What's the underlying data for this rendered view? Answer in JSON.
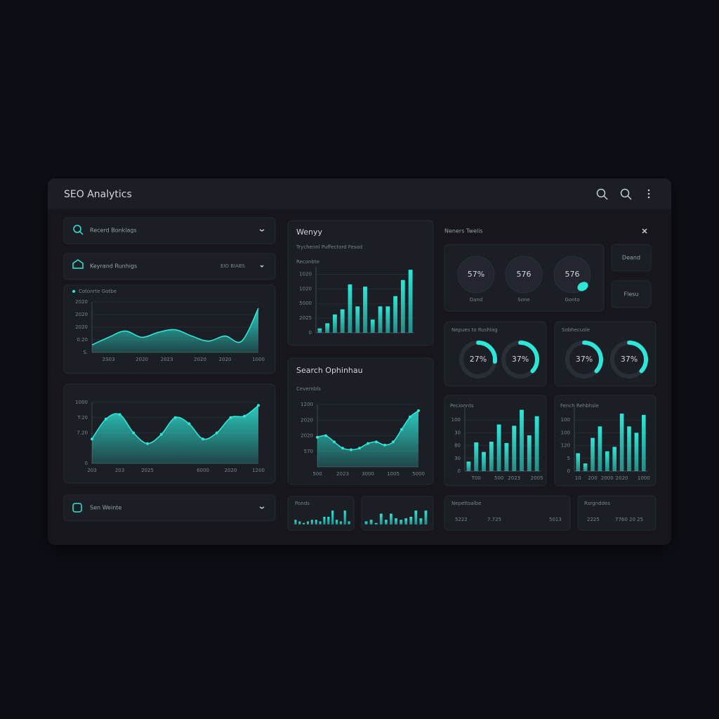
{
  "header": {
    "title": "SEO Analytics"
  },
  "filters": [
    {
      "label": "Recerd Bonklags"
    },
    {
      "label": "Keyrand Runhigs",
      "meta": "EIO BIABS"
    },
    {
      "label": "Sen Weinte"
    }
  ],
  "charts": [
    {
      "type": "area",
      "legend": "Cotonrte Gotbe",
      "color": "#2ee6d6",
      "grid": true,
      "x": [
        0,
        1,
        2,
        3,
        4,
        5,
        6,
        7,
        8,
        9,
        10
      ],
      "values": [
        0.6,
        1.2,
        1.7,
        1.2,
        1.6,
        1.8,
        1.3,
        0.9,
        1.3,
        0.9,
        3.5
      ],
      "xlim": [
        0,
        10
      ],
      "xticks": [
        {
          "value": 1,
          "label": "2S03"
        },
        {
          "value": 3,
          "label": "2020"
        },
        {
          "value": 4.5,
          "label": "2023"
        },
        {
          "value": 6.5,
          "label": "2020"
        },
        {
          "value": 8,
          "label": "2020"
        },
        {
          "value": 10,
          "label": "1000"
        }
      ],
      "ylim": [
        0,
        4
      ],
      "yticks": [
        {
          "value": 0,
          "label": "S."
        },
        {
          "value": 1,
          "label": "0.20"
        },
        {
          "value": 2,
          "label": "2020"
        },
        {
          "value": 3,
          "label": "2020"
        },
        {
          "value": 4,
          "label": "2020"
        }
      ]
    },
    {
      "type": "area",
      "color": "#2ee6d6",
      "grid": true,
      "markers": true,
      "x": [
        0,
        1,
        2,
        3,
        4,
        5,
        6,
        7,
        8,
        9,
        10,
        11,
        12
      ],
      "values": [
        1.6,
        2.9,
        3.2,
        2.0,
        1.3,
        1.9,
        3.0,
        2.6,
        1.6,
        2.0,
        3.0,
        3.1,
        3.8
      ],
      "xlim": [
        0,
        12
      ],
      "xticks": [
        {
          "value": 0,
          "label": "203"
        },
        {
          "value": 2,
          "label": "203"
        },
        {
          "value": 4,
          "label": "2025"
        },
        {
          "value": 8,
          "label": "6000"
        },
        {
          "value": 10,
          "label": "2020"
        },
        {
          "value": 12,
          "label": "1200"
        }
      ],
      "ylim": [
        0,
        4
      ],
      "yticks": [
        0,
        {
          "value": 2,
          "label": "7.20"
        },
        {
          "value": 3,
          "label": "T:20"
        },
        {
          "value": 4,
          "label": "1000"
        }
      ]
    },
    {
      "type": "bar",
      "title": "Wenyy",
      "subtitle": "Trychennl Puffectord Fesod",
      "label": "Reconbte",
      "color": "#2ee6d6",
      "grid": true,
      "values": [
        0.3,
        0.65,
        1.25,
        1.6,
        3.3,
        1.8,
        3.15,
        0.9,
        1.8,
        1.8,
        2.5,
        3.6,
        4.3
      ],
      "ylim": [
        0,
        4.5
      ],
      "yticks": [
        0,
        {
          "value": 1,
          "label": "2025"
        },
        {
          "value": 2,
          "label": "5000"
        },
        {
          "value": 3,
          "label": "1020"
        },
        {
          "value": 4,
          "label": "1020"
        }
      ]
    },
    {
      "type": "area",
      "title": "Search Ophinhau",
      "subtitle": "Cevernbls",
      "color": "#2ee6d6",
      "grid": true,
      "markers": true,
      "x": [
        0,
        1,
        2,
        3,
        4,
        5,
        6,
        7,
        8,
        9,
        10,
        11,
        12
      ],
      "values": [
        1.9,
        2.0,
        1.6,
        1.2,
        1.1,
        1.2,
        1.5,
        1.6,
        1.4,
        1.6,
        2.4,
        3.2,
        3.6
      ],
      "xlim": [
        0,
        12
      ],
      "xticks": [
        {
          "value": 0,
          "label": "500"
        },
        {
          "value": 3,
          "label": "2023"
        },
        {
          "value": 6,
          "label": "3000"
        },
        {
          "value": 9,
          "label": "1005"
        },
        {
          "value": 12,
          "label": "5000"
        }
      ],
      "ylim": [
        0,
        4
      ],
      "yticks": [
        {
          "value": 1,
          "label": "570"
        },
        {
          "value": 2,
          "label": "2020"
        },
        {
          "value": 3,
          "label": "2020"
        },
        {
          "value": 4,
          "label": "1200"
        }
      ]
    },
    {
      "type": "bar",
      "title": "Ponds",
      "color": "#2ee6d6",
      "values": [
        3,
        2,
        1,
        2,
        3,
        3,
        2,
        5,
        5,
        9,
        3,
        2,
        9,
        2
      ]
    },
    {
      "type": "bar",
      "color": "#2ee6d6",
      "values": [
        2,
        3,
        1,
        7,
        3,
        7,
        4,
        3,
        4,
        5,
        9,
        4,
        9
      ]
    },
    {
      "type": "donut",
      "title": "Nepues to Rushlag",
      "color": "#2ee6d6",
      "values": [
        27,
        37
      ],
      "value_labels": [
        "27%",
        "37%"
      ]
    },
    {
      "type": "donut",
      "title": "Sobhecusle",
      "color": "#2ee6d6",
      "values": [
        37,
        37
      ],
      "value_labels": [
        "37%",
        "37%"
      ]
    },
    {
      "type": "bar",
      "title": "Pecionnts",
      "color": "#2ee6d6",
      "grid": true,
      "categories": [
        null,
        "T00",
        null,
        null,
        "500",
        null,
        "2023",
        null,
        null,
        "2005"
      ],
      "values": [
        0.75,
        2.25,
        1.5,
        2.3,
        3.65,
        2.2,
        3.55,
        4.8,
        2.8,
        4.3
      ],
      "ylim": [
        0,
        5
      ],
      "yticks": [
        0,
        {
          "value": 1,
          "label": "30"
        },
        {
          "value": 2,
          "label": "80"
        },
        {
          "value": 3,
          "label": "30"
        },
        {
          "value": 4,
          "label": "100"
        }
      ]
    },
    {
      "type": "bar",
      "title": "Fench Rehbhsle",
      "color": "#2ee6d6",
      "grid": true,
      "categories": [
        "10",
        null,
        "200",
        null,
        "2000",
        null,
        "2020",
        null,
        null,
        "1000"
      ],
      "values": [
        1.4,
        0.6,
        2.6,
        3.5,
        1.55,
        1.9,
        4.5,
        3.5,
        3.0,
        4.4
      ],
      "ylim": [
        0,
        5
      ],
      "yticks": [
        0,
        {
          "value": 1,
          "label": "5"
        },
        {
          "value": 2,
          "label": "120"
        },
        {
          "value": 3,
          "label": "100"
        },
        {
          "value": 4,
          "label": "100"
        }
      ]
    }
  ],
  "side": {
    "title": "Neners Twelis",
    "metrics": [
      {
        "value": "57%",
        "label": "Dand"
      },
      {
        "value": "576",
        "label": "Sone"
      },
      {
        "value": "576",
        "label": "Gonto"
      }
    ],
    "buttons": [
      "Deand",
      "Flesu"
    ]
  },
  "stats": [
    {
      "title": "Nepettsalbe",
      "values": [
        "5222",
        "7.725",
        "5013"
      ]
    },
    {
      "title": "Rsrgnddes",
      "values": [
        "2225",
        "7760 20 25"
      ]
    }
  ]
}
